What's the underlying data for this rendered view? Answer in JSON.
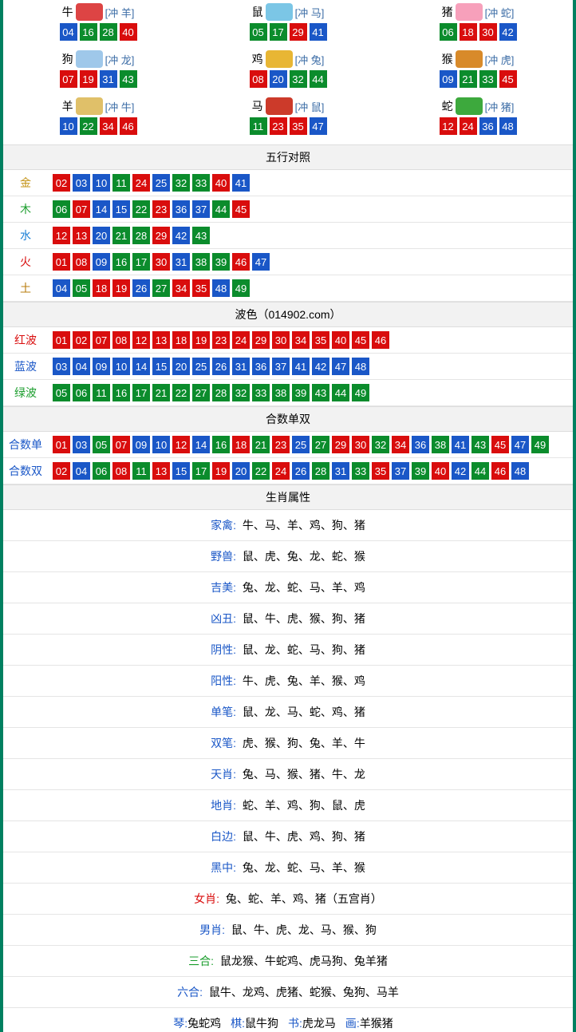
{
  "colors": {
    "red": "#d90d0d",
    "blue": "#1a57c7",
    "green": "#0b8c2c",
    "border": "#008060"
  },
  "zodiac": [
    {
      "name": "牛",
      "icon_color": "#d44",
      "conflict": "[冲 羊]",
      "nums": [
        {
          "v": "04",
          "c": "blue"
        },
        {
          "v": "16",
          "c": "green"
        },
        {
          "v": "28",
          "c": "green"
        },
        {
          "v": "40",
          "c": "red"
        }
      ]
    },
    {
      "name": "鼠",
      "icon_color": "#7bc6e6",
      "conflict": "[冲 马]",
      "nums": [
        {
          "v": "05",
          "c": "green"
        },
        {
          "v": "17",
          "c": "green"
        },
        {
          "v": "29",
          "c": "red"
        },
        {
          "v": "41",
          "c": "blue"
        }
      ]
    },
    {
      "name": "猪",
      "icon_color": "#f7a0bb",
      "conflict": "[冲 蛇]",
      "nums": [
        {
          "v": "06",
          "c": "green"
        },
        {
          "v": "18",
          "c": "red"
        },
        {
          "v": "30",
          "c": "red"
        },
        {
          "v": "42",
          "c": "blue"
        }
      ]
    },
    {
      "name": "狗",
      "icon_color": "#9fc8ea",
      "conflict": "[冲 龙]",
      "nums": [
        {
          "v": "07",
          "c": "red"
        },
        {
          "v": "19",
          "c": "red"
        },
        {
          "v": "31",
          "c": "blue"
        },
        {
          "v": "43",
          "c": "green"
        }
      ]
    },
    {
      "name": "鸡",
      "icon_color": "#e8b634",
      "conflict": "[冲 兔]",
      "nums": [
        {
          "v": "08",
          "c": "red"
        },
        {
          "v": "20",
          "c": "blue"
        },
        {
          "v": "32",
          "c": "green"
        },
        {
          "v": "44",
          "c": "green"
        }
      ]
    },
    {
      "name": "猴",
      "icon_color": "#d88a2a",
      "conflict": "[冲 虎]",
      "nums": [
        {
          "v": "09",
          "c": "blue"
        },
        {
          "v": "21",
          "c": "green"
        },
        {
          "v": "33",
          "c": "green"
        },
        {
          "v": "45",
          "c": "red"
        }
      ]
    },
    {
      "name": "羊",
      "icon_color": "#e0c069",
      "conflict": "[冲 牛]",
      "nums": [
        {
          "v": "10",
          "c": "blue"
        },
        {
          "v": "22",
          "c": "green"
        },
        {
          "v": "34",
          "c": "red"
        },
        {
          "v": "46",
          "c": "red"
        }
      ]
    },
    {
      "name": "马",
      "icon_color": "#cc3a2a",
      "conflict": "[冲 鼠]",
      "nums": [
        {
          "v": "11",
          "c": "green"
        },
        {
          "v": "23",
          "c": "red"
        },
        {
          "v": "35",
          "c": "red"
        },
        {
          "v": "47",
          "c": "blue"
        }
      ]
    },
    {
      "name": "蛇",
      "icon_color": "#3da93d",
      "conflict": "[冲 猪]",
      "nums": [
        {
          "v": "12",
          "c": "red"
        },
        {
          "v": "24",
          "c": "red"
        },
        {
          "v": "36",
          "c": "blue"
        },
        {
          "v": "48",
          "c": "blue"
        }
      ]
    }
  ],
  "sections": {
    "wuxing_title": "五行对照",
    "bose_title": "波色（014902.com）",
    "heshu_title": "合数单双",
    "shuxing_title": "生肖属性"
  },
  "wuxing": [
    {
      "key": "金",
      "cls": "clr-gold",
      "nums": [
        {
          "v": "02",
          "c": "red"
        },
        {
          "v": "03",
          "c": "blue"
        },
        {
          "v": "10",
          "c": "blue"
        },
        {
          "v": "11",
          "c": "green"
        },
        {
          "v": "24",
          "c": "red"
        },
        {
          "v": "25",
          "c": "blue"
        },
        {
          "v": "32",
          "c": "green"
        },
        {
          "v": "33",
          "c": "green"
        },
        {
          "v": "40",
          "c": "red"
        },
        {
          "v": "41",
          "c": "blue"
        }
      ]
    },
    {
      "key": "木",
      "cls": "clr-wood",
      "nums": [
        {
          "v": "06",
          "c": "green"
        },
        {
          "v": "07",
          "c": "red"
        },
        {
          "v": "14",
          "c": "blue"
        },
        {
          "v": "15",
          "c": "blue"
        },
        {
          "v": "22",
          "c": "green"
        },
        {
          "v": "23",
          "c": "red"
        },
        {
          "v": "36",
          "c": "blue"
        },
        {
          "v": "37",
          "c": "blue"
        },
        {
          "v": "44",
          "c": "green"
        },
        {
          "v": "45",
          "c": "red"
        }
      ]
    },
    {
      "key": "水",
      "cls": "clr-water",
      "nums": [
        {
          "v": "12",
          "c": "red"
        },
        {
          "v": "13",
          "c": "red"
        },
        {
          "v": "20",
          "c": "blue"
        },
        {
          "v": "21",
          "c": "green"
        },
        {
          "v": "28",
          "c": "green"
        },
        {
          "v": "29",
          "c": "red"
        },
        {
          "v": "42",
          "c": "blue"
        },
        {
          "v": "43",
          "c": "green"
        }
      ]
    },
    {
      "key": "火",
      "cls": "clr-fire",
      "nums": [
        {
          "v": "01",
          "c": "red"
        },
        {
          "v": "08",
          "c": "red"
        },
        {
          "v": "09",
          "c": "blue"
        },
        {
          "v": "16",
          "c": "green"
        },
        {
          "v": "17",
          "c": "green"
        },
        {
          "v": "30",
          "c": "red"
        },
        {
          "v": "31",
          "c": "blue"
        },
        {
          "v": "38",
          "c": "green"
        },
        {
          "v": "39",
          "c": "green"
        },
        {
          "v": "46",
          "c": "red"
        },
        {
          "v": "47",
          "c": "blue"
        }
      ]
    },
    {
      "key": "土",
      "cls": "clr-earth",
      "nums": [
        {
          "v": "04",
          "c": "blue"
        },
        {
          "v": "05",
          "c": "green"
        },
        {
          "v": "18",
          "c": "red"
        },
        {
          "v": "19",
          "c": "red"
        },
        {
          "v": "26",
          "c": "blue"
        },
        {
          "v": "27",
          "c": "green"
        },
        {
          "v": "34",
          "c": "red"
        },
        {
          "v": "35",
          "c": "red"
        },
        {
          "v": "48",
          "c": "blue"
        },
        {
          "v": "49",
          "c": "green"
        }
      ]
    }
  ],
  "bose": [
    {
      "key": "红波",
      "cls": "clr-red",
      "nums": [
        {
          "v": "01",
          "c": "red"
        },
        {
          "v": "02",
          "c": "red"
        },
        {
          "v": "07",
          "c": "red"
        },
        {
          "v": "08",
          "c": "red"
        },
        {
          "v": "12",
          "c": "red"
        },
        {
          "v": "13",
          "c": "red"
        },
        {
          "v": "18",
          "c": "red"
        },
        {
          "v": "19",
          "c": "red"
        },
        {
          "v": "23",
          "c": "red"
        },
        {
          "v": "24",
          "c": "red"
        },
        {
          "v": "29",
          "c": "red"
        },
        {
          "v": "30",
          "c": "red"
        },
        {
          "v": "34",
          "c": "red"
        },
        {
          "v": "35",
          "c": "red"
        },
        {
          "v": "40",
          "c": "red"
        },
        {
          "v": "45",
          "c": "red"
        },
        {
          "v": "46",
          "c": "red"
        }
      ]
    },
    {
      "key": "蓝波",
      "cls": "clr-blue",
      "nums": [
        {
          "v": "03",
          "c": "blue"
        },
        {
          "v": "04",
          "c": "blue"
        },
        {
          "v": "09",
          "c": "blue"
        },
        {
          "v": "10",
          "c": "blue"
        },
        {
          "v": "14",
          "c": "blue"
        },
        {
          "v": "15",
          "c": "blue"
        },
        {
          "v": "20",
          "c": "blue"
        },
        {
          "v": "25",
          "c": "blue"
        },
        {
          "v": "26",
          "c": "blue"
        },
        {
          "v": "31",
          "c": "blue"
        },
        {
          "v": "36",
          "c": "blue"
        },
        {
          "v": "37",
          "c": "blue"
        },
        {
          "v": "41",
          "c": "blue"
        },
        {
          "v": "42",
          "c": "blue"
        },
        {
          "v": "47",
          "c": "blue"
        },
        {
          "v": "48",
          "c": "blue"
        }
      ]
    },
    {
      "key": "绿波",
      "cls": "clr-green",
      "nums": [
        {
          "v": "05",
          "c": "green"
        },
        {
          "v": "06",
          "c": "green"
        },
        {
          "v": "11",
          "c": "green"
        },
        {
          "v": "16",
          "c": "green"
        },
        {
          "v": "17",
          "c": "green"
        },
        {
          "v": "21",
          "c": "green"
        },
        {
          "v": "22",
          "c": "green"
        },
        {
          "v": "27",
          "c": "green"
        },
        {
          "v": "28",
          "c": "green"
        },
        {
          "v": "32",
          "c": "green"
        },
        {
          "v": "33",
          "c": "green"
        },
        {
          "v": "38",
          "c": "green"
        },
        {
          "v": "39",
          "c": "green"
        },
        {
          "v": "43",
          "c": "green"
        },
        {
          "v": "44",
          "c": "green"
        },
        {
          "v": "49",
          "c": "green"
        }
      ]
    }
  ],
  "heshu": [
    {
      "key": "合数单",
      "cls": "clr-blue",
      "nums": [
        {
          "v": "01",
          "c": "red"
        },
        {
          "v": "03",
          "c": "blue"
        },
        {
          "v": "05",
          "c": "green"
        },
        {
          "v": "07",
          "c": "red"
        },
        {
          "v": "09",
          "c": "blue"
        },
        {
          "v": "10",
          "c": "blue"
        },
        {
          "v": "12",
          "c": "red"
        },
        {
          "v": "14",
          "c": "blue"
        },
        {
          "v": "16",
          "c": "green"
        },
        {
          "v": "18",
          "c": "red"
        },
        {
          "v": "21",
          "c": "green"
        },
        {
          "v": "23",
          "c": "red"
        },
        {
          "v": "25",
          "c": "blue"
        },
        {
          "v": "27",
          "c": "green"
        },
        {
          "v": "29",
          "c": "red"
        },
        {
          "v": "30",
          "c": "red"
        },
        {
          "v": "32",
          "c": "green"
        },
        {
          "v": "34",
          "c": "red"
        },
        {
          "v": "36",
          "c": "blue"
        },
        {
          "v": "38",
          "c": "green"
        },
        {
          "v": "41",
          "c": "blue"
        },
        {
          "v": "43",
          "c": "green"
        },
        {
          "v": "45",
          "c": "red"
        },
        {
          "v": "47",
          "c": "blue"
        },
        {
          "v": "49",
          "c": "green"
        }
      ]
    },
    {
      "key": "合数双",
      "cls": "clr-blue",
      "nums": [
        {
          "v": "02",
          "c": "red"
        },
        {
          "v": "04",
          "c": "blue"
        },
        {
          "v": "06",
          "c": "green"
        },
        {
          "v": "08",
          "c": "red"
        },
        {
          "v": "11",
          "c": "green"
        },
        {
          "v": "13",
          "c": "red"
        },
        {
          "v": "15",
          "c": "blue"
        },
        {
          "v": "17",
          "c": "green"
        },
        {
          "v": "19",
          "c": "red"
        },
        {
          "v": "20",
          "c": "blue"
        },
        {
          "v": "22",
          "c": "green"
        },
        {
          "v": "24",
          "c": "red"
        },
        {
          "v": "26",
          "c": "blue"
        },
        {
          "v": "28",
          "c": "green"
        },
        {
          "v": "31",
          "c": "blue"
        },
        {
          "v": "33",
          "c": "green"
        },
        {
          "v": "35",
          "c": "red"
        },
        {
          "v": "37",
          "c": "blue"
        },
        {
          "v": "39",
          "c": "green"
        },
        {
          "v": "40",
          "c": "red"
        },
        {
          "v": "42",
          "c": "blue"
        },
        {
          "v": "44",
          "c": "green"
        },
        {
          "v": "46",
          "c": "red"
        },
        {
          "v": "48",
          "c": "blue"
        }
      ]
    }
  ],
  "shuxing": [
    {
      "label": "家禽:",
      "cls": "attr-label",
      "value": "牛、马、羊、鸡、狗、猪"
    },
    {
      "label": "野兽:",
      "cls": "attr-label",
      "value": "鼠、虎、兔、龙、蛇、猴"
    },
    {
      "label": "吉美:",
      "cls": "attr-label",
      "value": "兔、龙、蛇、马、羊、鸡"
    },
    {
      "label": "凶丑:",
      "cls": "attr-label",
      "value": "鼠、牛、虎、猴、狗、猪"
    },
    {
      "label": "阴性:",
      "cls": "attr-label",
      "value": "鼠、龙、蛇、马、狗、猪"
    },
    {
      "label": "阳性:",
      "cls": "attr-label",
      "value": "牛、虎、兔、羊、猴、鸡"
    },
    {
      "label": "单笔:",
      "cls": "attr-label",
      "value": "鼠、龙、马、蛇、鸡、猪"
    },
    {
      "label": "双笔:",
      "cls": "attr-label",
      "value": "虎、猴、狗、兔、羊、牛"
    },
    {
      "label": "天肖:",
      "cls": "attr-label",
      "value": "兔、马、猴、猪、牛、龙"
    },
    {
      "label": "地肖:",
      "cls": "attr-label",
      "value": "蛇、羊、鸡、狗、鼠、虎"
    },
    {
      "label": "白边:",
      "cls": "attr-label",
      "value": "鼠、牛、虎、鸡、狗、猪"
    },
    {
      "label": "黑中:",
      "cls": "attr-label",
      "value": "兔、龙、蛇、马、羊、猴"
    },
    {
      "label": "女肖:",
      "cls": "attr-label-red",
      "value": "兔、蛇、羊、鸡、猪（五宫肖）"
    },
    {
      "label": "男肖:",
      "cls": "attr-label",
      "value": "鼠、牛、虎、龙、马、猴、狗"
    },
    {
      "label": "三合:",
      "cls": "attr-label-green",
      "value": "鼠龙猴、牛蛇鸡、虎马狗、兔羊猪"
    },
    {
      "label": "六合:",
      "cls": "attr-label",
      "value": "鼠牛、龙鸡、虎猪、蛇猴、兔狗、马羊"
    }
  ],
  "bottom": [
    {
      "label": "琴:",
      "value": "兔蛇鸡"
    },
    {
      "label": "棋:",
      "value": "鼠牛狗"
    },
    {
      "label": "书:",
      "value": "虎龙马"
    },
    {
      "label": "画:",
      "value": "羊猴猪"
    }
  ]
}
